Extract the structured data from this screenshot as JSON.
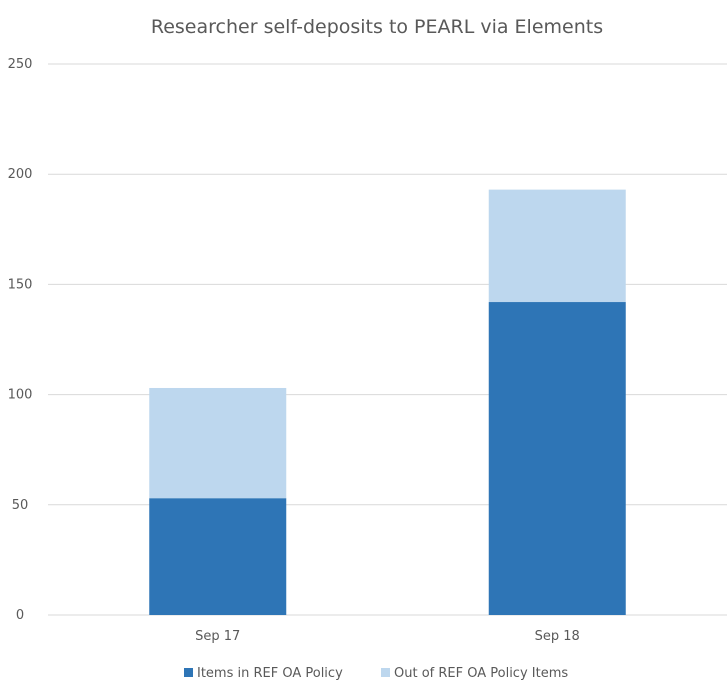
{
  "chart_data": {
    "type": "bar",
    "stacked": true,
    "title": "Researcher self-deposits to PEARL via Elements",
    "xlabel": "",
    "ylabel": "",
    "categories": [
      "Sep 17",
      "Sep 18"
    ],
    "series": [
      {
        "name": "Items in REF OA Policy",
        "values": [
          53,
          142
        ],
        "color": "#2e75b6"
      },
      {
        "name": "Out of REF OA Policy Items",
        "values": [
          50,
          51
        ],
        "color": "#bdd7ee"
      }
    ],
    "ylim": [
      0,
      250
    ],
    "yticks": [
      0,
      50,
      100,
      150,
      200,
      250
    ],
    "grid": true,
    "legend_position": "bottom"
  }
}
